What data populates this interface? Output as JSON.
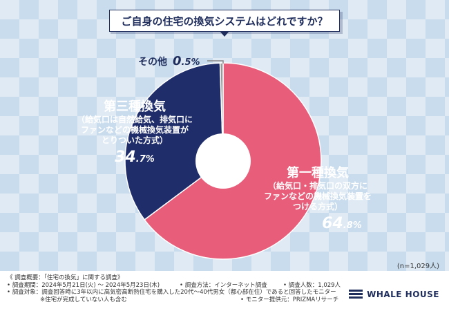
{
  "title": "ご自身の住宅の換気システムはどれですか？",
  "chart_data": {
    "type": "pie",
    "title": "ご自身の住宅の換気システムはどれですか？",
    "slices": [
      {
        "name": "第一種換気",
        "desc": [
          "（給気口・排気口の双方に",
          "ファンなどの機械換気装置を",
          "つける方式）"
        ],
        "value": 64.8,
        "pct_main": "64",
        "pct_dec": ".8%",
        "color": "#e85d7a"
      },
      {
        "name": "第三種換気",
        "desc": [
          "（給気口は自然給気、排気口に",
          "ファンなどの機械換気装置が",
          "とりついた方式）"
        ],
        "value": 34.7,
        "pct_main": "34",
        "pct_dec": ".7%",
        "color": "#1f2d6b"
      },
      {
        "name": "その他",
        "desc": [],
        "value": 0.5,
        "pct_main": "0",
        "pct_dec": ".5%",
        "color": "#9a9a9a"
      }
    ],
    "n_note": "(n=1,029人)"
  },
  "footer": {
    "summary": "《 調査概要：「住宅の換気」に関する調査》",
    "period": "• 調査期間：2024年5月21日(火) ～ 2024年5月23日(木)",
    "method": "• 調査方法：インターネット調査",
    "count": "• 調査人数：1,029人",
    "target": "• 調査対象：調査回答時に3年以内に高気密高断熱住宅を購入した20代～40代男女（都心部在住）であると回答したモニター",
    "target_note": "※住宅が完成していない人も含む",
    "provider": "• モニター提供元：PRIZMAリサーチ"
  },
  "logo": {
    "text": "WHALE HOUSE",
    "icon": "whale-house-logo-icon"
  }
}
